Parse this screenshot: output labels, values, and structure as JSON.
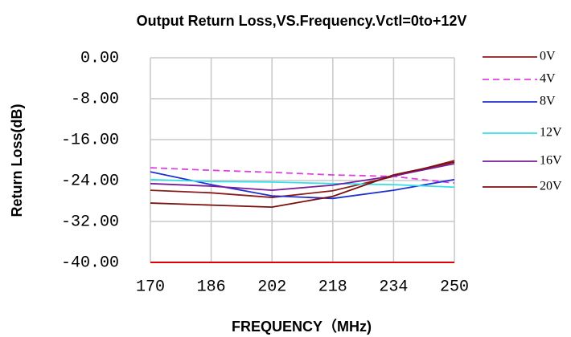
{
  "chart_data": {
    "type": "line",
    "title": "Output Return Loss,VS.Frequency.Vctl=0to+12V",
    "xlabel": "FREQUENCY（MHz)",
    "ylabel": "Return Loss(dB)",
    "x": [
      170,
      186,
      202,
      218,
      234,
      250
    ],
    "xlim": [
      170,
      250
    ],
    "xticks": [
      170,
      186,
      202,
      218,
      234,
      250
    ],
    "ylim": [
      -40,
      0
    ],
    "yticks": [
      {
        "value": 0,
        "label": "0.00"
      },
      {
        "value": -8,
        "label": "-8.00"
      },
      {
        "value": -16,
        "label": "-16.00"
      },
      {
        "value": -24,
        "label": "-24.00"
      },
      {
        "value": -32,
        "label": "-32.00"
      },
      {
        "value": -40,
        "label": "-40.00"
      }
    ],
    "grid": true,
    "legend": "right",
    "series": [
      {
        "name": "0V",
        "color": "#8b1c1c",
        "values": [
          -25.9,
          -26.4,
          -27.3,
          -26.0,
          -23.2,
          -20.1
        ]
      },
      {
        "name": "4V",
        "color": "#e040e0",
        "dashed": true,
        "values": [
          -21.5,
          -22.0,
          -22.4,
          -22.9,
          -23.2,
          -24.5
        ]
      },
      {
        "name": "8V",
        "color": "#1f2fd0",
        "values": [
          -22.3,
          -24.8,
          -27.0,
          -27.5,
          -25.9,
          -23.8
        ]
      },
      {
        "name": "12V",
        "color": "#33e0e8",
        "values": [
          -23.8,
          -24.2,
          -24.3,
          -24.6,
          -24.8,
          -25.3
        ]
      },
      {
        "name": "16V",
        "color": "#7a1c9a",
        "values": [
          -24.6,
          -25.1,
          -25.9,
          -24.9,
          -23.1,
          -20.7
        ]
      },
      {
        "name": "20V",
        "color": "#7a1010",
        "values": [
          -28.4,
          -28.8,
          -29.2,
          -27.1,
          -22.9,
          -20.4
        ]
      }
    ]
  }
}
